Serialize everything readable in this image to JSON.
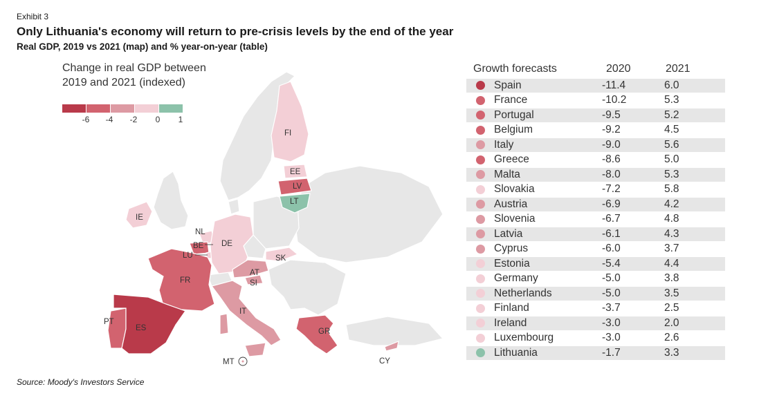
{
  "header": {
    "exhibit": "Exhibit 3",
    "title": "Only Lithuania's economy will return to pre-crisis levels by the end of the year",
    "subtitle": "Real GDP, 2019 vs 2021 (map) and % year-on-year (table)"
  },
  "source": "Source: Moody's Investors Service",
  "colors": {
    "bin_lt_-6": "#b93a4a",
    "bin_-6_-4": "#d2636f",
    "bin_-4_-2": "#dd9aa3",
    "bin_-2_0": "#f3cfd6",
    "bin_0_1": "#8cc2aa",
    "no_data": "#e7e7e7",
    "row_shade": "#e6e6e6"
  },
  "legend": {
    "title": "Change in real GDP between 2019 and 2021 (indexed)",
    "ticks": [
      "-6",
      "-4",
      "-2",
      "0",
      "1"
    ]
  },
  "map_labels": {
    "FI": "FI",
    "EE": "EE",
    "LV": "LV",
    "LT": "LT",
    "IE": "IE",
    "NL": "NL",
    "BE": "BE",
    "LU": "LU",
    "DE": "DE",
    "SK": "SK",
    "AT": "AT",
    "SI": "SI",
    "FR": "FR",
    "IT": "IT",
    "PT": "PT",
    "ES": "ES",
    "GR": "GR",
    "MT": "MT",
    "CY": "CY"
  },
  "chart_data": {
    "type": "table",
    "title": "Growth forecasts",
    "columns": [
      "Growth forecasts",
      "2020",
      "2021"
    ],
    "rows": [
      {
        "country": "Spain",
        "v2020": "-11.4",
        "v2021": "6.0",
        "color": "#b93a4a"
      },
      {
        "country": "France",
        "v2020": "-10.2",
        "v2021": "5.3",
        "color": "#d2636f"
      },
      {
        "country": "Portugal",
        "v2020": "-9.5",
        "v2021": "5.2",
        "color": "#d2636f"
      },
      {
        "country": "Belgium",
        "v2020": "-9.2",
        "v2021": "4.5",
        "color": "#d2636f"
      },
      {
        "country": "Italy",
        "v2020": "-9.0",
        "v2021": "5.6",
        "color": "#dd9aa3"
      },
      {
        "country": "Greece",
        "v2020": "-8.6",
        "v2021": "5.0",
        "color": "#d2636f"
      },
      {
        "country": "Malta",
        "v2020": "-8.0",
        "v2021": "5.3",
        "color": "#dd9aa3"
      },
      {
        "country": "Slovakia",
        "v2020": "-7.2",
        "v2021": "5.8",
        "color": "#f3cfd6"
      },
      {
        "country": "Austria",
        "v2020": "-6.9",
        "v2021": "4.2",
        "color": "#dd9aa3"
      },
      {
        "country": "Slovenia",
        "v2020": "-6.7",
        "v2021": "4.8",
        "color": "#dd9aa3"
      },
      {
        "country": "Latvia",
        "v2020": "-6.1",
        "v2021": "4.3",
        "color": "#dd9aa3"
      },
      {
        "country": "Cyprus",
        "v2020": "-6.0",
        "v2021": "3.7",
        "color": "#dd9aa3"
      },
      {
        "country": "Estonia",
        "v2020": "-5.4",
        "v2021": "4.4",
        "color": "#f3cfd6"
      },
      {
        "country": "Germany",
        "v2020": "-5.0",
        "v2021": "3.8",
        "color": "#f3cfd6"
      },
      {
        "country": "Netherlands",
        "v2020": "-5.0",
        "v2021": "3.5",
        "color": "#f3cfd6"
      },
      {
        "country": "Finland",
        "v2020": "-3.7",
        "v2021": "2.5",
        "color": "#f3cfd6"
      },
      {
        "country": "Ireland",
        "v2020": "-3.0",
        "v2021": "2.0",
        "color": "#f3cfd6"
      },
      {
        "country": "Luxembourg",
        "v2020": "-3.0",
        "v2021": "2.6",
        "color": "#f3cfd6"
      },
      {
        "country": "Lithuania",
        "v2020": "-1.7",
        "v2021": "3.3",
        "color": "#8cc2aa"
      }
    ]
  }
}
